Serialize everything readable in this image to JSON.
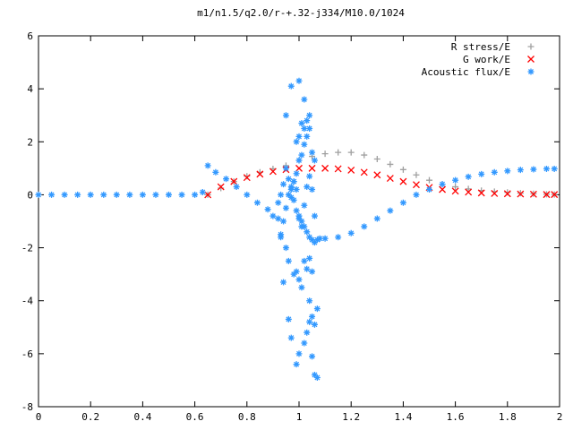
{
  "chart_data": {
    "type": "scatter",
    "title": "m1/n1.5/q2.0/r-+.32-j334/M10.0/1024",
    "xlabel": "",
    "ylabel": "",
    "xlim": [
      0,
      2
    ],
    "ylim": [
      -8,
      6
    ],
    "x_ticks": [
      "0",
      "0.2",
      "0.4",
      "0.6",
      "0.8",
      "1",
      "1.2",
      "1.4",
      "1.6",
      "1.8",
      "2"
    ],
    "y_ticks": [
      "-8",
      "-6",
      "-4",
      "-2",
      "0",
      "2",
      "4",
      "6"
    ],
    "grid": false,
    "legend_position": "top-right",
    "series": [
      {
        "name": "R stress/E",
        "marker": "plus",
        "color": "#a0a0a0",
        "x": [
          0.65,
          0.7,
          0.75,
          0.8,
          0.85,
          0.9,
          0.95,
          1.0,
          1.05,
          1.1,
          1.15,
          1.2,
          1.25,
          1.3,
          1.35,
          1.4,
          1.45,
          1.5,
          1.55,
          1.6,
          1.65,
          1.7,
          1.75,
          1.8,
          1.85,
          1.9,
          1.95,
          1.98
        ],
        "y": [
          0.0,
          0.25,
          0.5,
          0.7,
          0.85,
          0.98,
          1.1,
          1.3,
          1.45,
          1.55,
          1.6,
          1.6,
          1.5,
          1.35,
          1.15,
          0.95,
          0.75,
          0.55,
          0.4,
          0.3,
          0.22,
          0.16,
          0.12,
          0.09,
          0.06,
          0.04,
          0.02,
          0.01
        ]
      },
      {
        "name": "G work/E",
        "marker": "cross",
        "color": "#ff0000",
        "x": [
          0.65,
          0.7,
          0.75,
          0.8,
          0.85,
          0.9,
          0.95,
          1.0,
          1.05,
          1.1,
          1.15,
          1.2,
          1.25,
          1.3,
          1.35,
          1.4,
          1.45,
          1.5,
          1.55,
          1.6,
          1.65,
          1.7,
          1.75,
          1.8,
          1.85,
          1.9,
          1.95,
          1.98
        ],
        "y": [
          0.0,
          0.3,
          0.5,
          0.65,
          0.78,
          0.88,
          0.95,
          1.0,
          1.0,
          1.0,
          0.98,
          0.93,
          0.85,
          0.75,
          0.62,
          0.5,
          0.38,
          0.28,
          0.2,
          0.14,
          0.1,
          0.07,
          0.05,
          0.04,
          0.03,
          0.02,
          0.01,
          0.01
        ]
      },
      {
        "name": "Acoustic flux/E",
        "marker": "star",
        "color": "#3399ff",
        "x": [
          0.0,
          0.05,
          0.1,
          0.15,
          0.2,
          0.25,
          0.3,
          0.35,
          0.4,
          0.45,
          0.5,
          0.55,
          0.6,
          0.63,
          0.65,
          0.68,
          0.72,
          0.76,
          0.8,
          0.84,
          0.88,
          0.9,
          0.92,
          0.93,
          0.94,
          0.95,
          0.96,
          0.97,
          0.98,
          0.99,
          1.0,
          1.01,
          1.02,
          1.03,
          1.04,
          1.05,
          1.06,
          1.07,
          1.08,
          1.1,
          1.15,
          1.2,
          1.25,
          1.3,
          1.35,
          1.4,
          1.45,
          1.5,
          1.55,
          1.6,
          1.65,
          1.7,
          1.75,
          1.8,
          1.85,
          1.9,
          1.95,
          1.98,
          0.93,
          0.94,
          0.95,
          0.96,
          0.97,
          0.98,
          0.99,
          1.0,
          1.01,
          1.02,
          1.03,
          1.04,
          1.05,
          1.06,
          0.92,
          0.93,
          0.95,
          0.96,
          0.98,
          0.99,
          1.0,
          1.01,
          1.02,
          1.03,
          1.04,
          1.05,
          0.94,
          0.96,
          0.97,
          0.99,
          1.0,
          1.02,
          1.03,
          1.04,
          1.05,
          1.06,
          1.07,
          0.99,
          1.0,
          1.01,
          1.02,
          1.03,
          1.04,
          1.05,
          1.06,
          1.07,
          0.97,
          0.98,
          0.99,
          1.0,
          1.01,
          1.02,
          1.03,
          1.04,
          1.05,
          0.95,
          0.97,
          1.0,
          1.02,
          1.04,
          1.06
        ],
        "y": [
          0,
          0,
          0,
          0,
          0,
          0,
          0,
          0,
          0,
          0,
          0,
          0,
          0,
          0.1,
          1.1,
          0.85,
          0.6,
          0.3,
          0.0,
          -0.3,
          -0.55,
          -0.8,
          -0.3,
          0.0,
          0.4,
          1.0,
          0.6,
          0.2,
          -0.2,
          -0.6,
          -0.9,
          -1.0,
          -1.2,
          -1.4,
          -1.6,
          -1.7,
          -1.8,
          -1.7,
          -1.65,
          -1.65,
          -1.6,
          -1.45,
          -1.2,
          -0.9,
          -0.6,
          -0.3,
          0.0,
          0.2,
          0.4,
          0.55,
          0.68,
          0.78,
          0.85,
          0.9,
          0.94,
          0.96,
          0.98,
          0.98,
          -1.5,
          -1.0,
          -0.5,
          0.0,
          0.3,
          0.5,
          0.8,
          1.3,
          1.5,
          1.9,
          2.2,
          2.5,
          1.6,
          1.3,
          -0.9,
          -1.6,
          -2.0,
          -2.5,
          -3.0,
          -2.9,
          -3.2,
          -3.5,
          -2.5,
          -2.8,
          -2.4,
          -2.9,
          -3.3,
          -4.7,
          -5.4,
          -6.4,
          -6.0,
          -5.6,
          -5.2,
          -4.8,
          -4.6,
          -4.9,
          -4.3,
          2.0,
          2.2,
          2.7,
          2.5,
          2.8,
          -4.0,
          -6.1,
          -6.8,
          -6.9,
          -0.1,
          0.5,
          0.2,
          -0.8,
          -1.2,
          -0.4,
          0.3,
          0.7,
          0.2,
          3.0,
          4.1,
          4.3,
          3.6,
          3.0,
          -0.8
        ]
      }
    ]
  }
}
